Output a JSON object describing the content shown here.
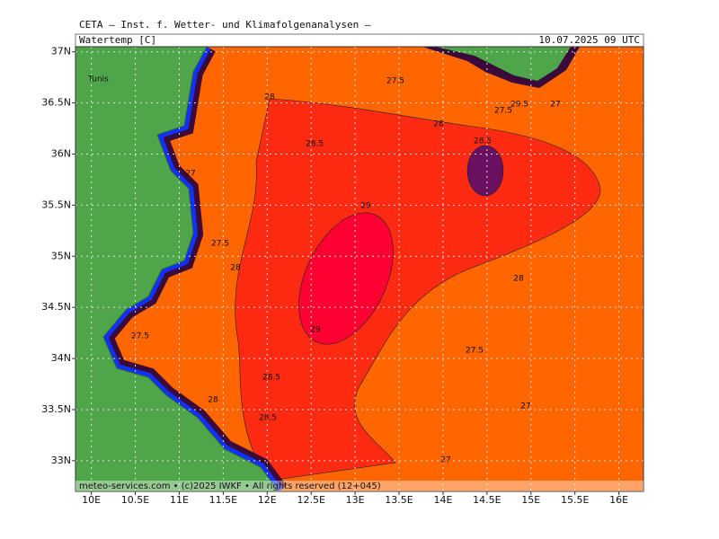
{
  "header": {
    "institute": "CETA — Inst. f. Wetter- und Klimafolgenanalysen —",
    "variable": "Watertemp [C]",
    "valid_time": "10.07.2025 09 UTC"
  },
  "map": {
    "xlim": [
      9.82,
      16.28
    ],
    "ylim": [
      32.7,
      37.05
    ],
    "xticks": [
      {
        "value": 10,
        "label": "10E"
      },
      {
        "value": 10.5,
        "label": "10.5E"
      },
      {
        "value": 11,
        "label": "11E"
      },
      {
        "value": 11.5,
        "label": "11.5E"
      },
      {
        "value": 12,
        "label": "12E"
      },
      {
        "value": 12.5,
        "label": "12.5E"
      },
      {
        "value": 13,
        "label": "13E"
      },
      {
        "value": 13.5,
        "label": "13.5E"
      },
      {
        "value": 14,
        "label": "14E"
      },
      {
        "value": 14.5,
        "label": "14.5E"
      },
      {
        "value": 15,
        "label": "15E"
      },
      {
        "value": 15.5,
        "label": "15.5E"
      },
      {
        "value": 16,
        "label": "16E"
      }
    ],
    "yticks": [
      {
        "value": 33,
        "label": "33N"
      },
      {
        "value": 33.5,
        "label": "33.5N"
      },
      {
        "value": 34,
        "label": "34N"
      },
      {
        "value": 34.5,
        "label": "34.5N"
      },
      {
        "value": 35,
        "label": "35N"
      },
      {
        "value": 35.5,
        "label": "35.5N"
      },
      {
        "value": 36,
        "label": "36N"
      },
      {
        "value": 36.5,
        "label": "36.5N"
      },
      {
        "value": 37,
        "label": "37N"
      }
    ],
    "place": "Tunis",
    "contour_labels": [
      "28",
      "27.5",
      "28",
      "28.5",
      "28.5",
      "29",
      "27",
      "27.5",
      "28",
      "28",
      "29",
      "27.5",
      "27.5",
      "28.5",
      "28",
      "27",
      "29.5",
      "27.5",
      "27",
      "28.5",
      "27"
    ]
  },
  "footer": "meteo-services.com • (c)2025 IWKF • All rights reserved (12+045)"
}
